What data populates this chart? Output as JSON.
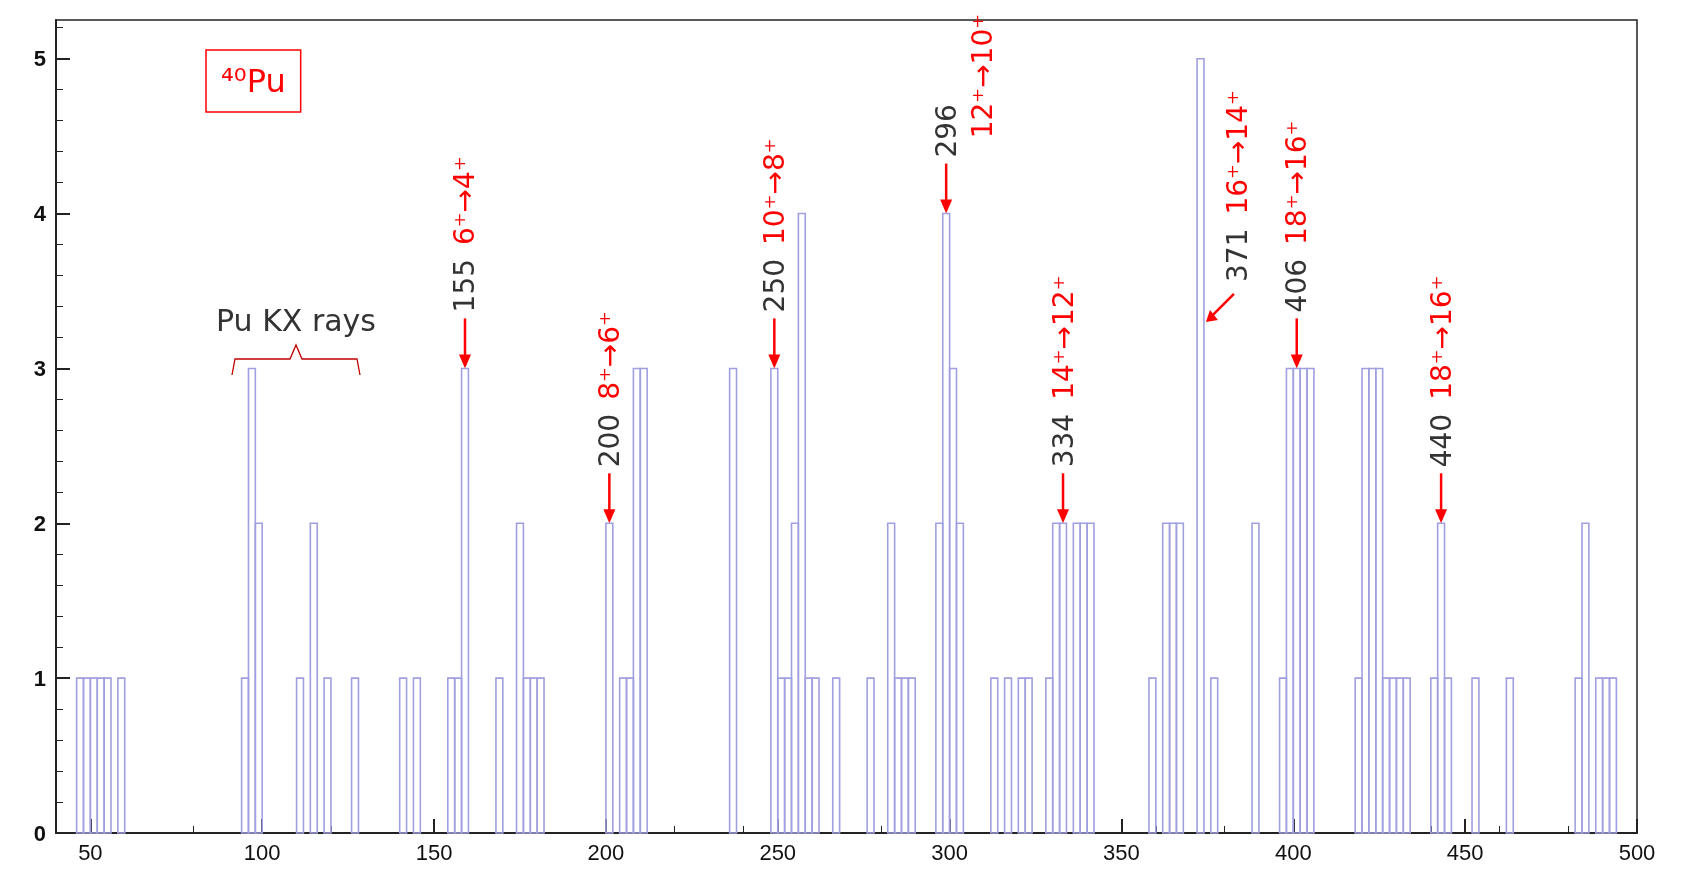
{
  "chart_data": {
    "type": "histogram",
    "bins": [
      40,
      42,
      44,
      46,
      48,
      50,
      52,
      54,
      56,
      58,
      60,
      62,
      64,
      66,
      68,
      70,
      72,
      74,
      76,
      78,
      80,
      82,
      84,
      86,
      88,
      90,
      92,
      94,
      96,
      98,
      100,
      102,
      104,
      106,
      108,
      110,
      112,
      114,
      116,
      118,
      120,
      122,
      124,
      126,
      128,
      130,
      132,
      134,
      136,
      138,
      140,
      142,
      144,
      146,
      148,
      150,
      152,
      154,
      156,
      158,
      160,
      162,
      164,
      166,
      168,
      170,
      172,
      174,
      176,
      178,
      180,
      182,
      184,
      186,
      188,
      190,
      192,
      194,
      196,
      198,
      200,
      202,
      204,
      206,
      208,
      210,
      212,
      214,
      216,
      218,
      220,
      222,
      224,
      226,
      228,
      230,
      232,
      234,
      236,
      238,
      240,
      242,
      244,
      246,
      248,
      250,
      252,
      254,
      256,
      258,
      260,
      262,
      264,
      266,
      268,
      270,
      272,
      274,
      276,
      278,
      280,
      282,
      284,
      286,
      288,
      290,
      292,
      294,
      296,
      298,
      300,
      302,
      304,
      306,
      308,
      310,
      312,
      314,
      316,
      318,
      320,
      322,
      324,
      326,
      328,
      330,
      332,
      334,
      336,
      338,
      340,
      342,
      344,
      346,
      348,
      350,
      352,
      354,
      356,
      358,
      360,
      362,
      364,
      366,
      368,
      370,
      372,
      374,
      376,
      378,
      380,
      382,
      384,
      386,
      388,
      390,
      392,
      394,
      396,
      398,
      400,
      402,
      404,
      406,
      408,
      410,
      412,
      414,
      416,
      418,
      420,
      422,
      424,
      426,
      428,
      430,
      432,
      434,
      436,
      438,
      440,
      442,
      444,
      446,
      448,
      450,
      452,
      454,
      456,
      458,
      460,
      462,
      464,
      466,
      468,
      470,
      472,
      474,
      476,
      478,
      480,
      482,
      484,
      486,
      488,
      490,
      492,
      494,
      496,
      498,
      500
    ],
    "values": [
      0,
      0,
      0,
      1,
      1,
      1,
      1,
      1,
      0,
      1,
      0,
      0,
      0,
      0,
      0,
      0,
      0,
      0,
      0,
      0,
      0,
      0,
      0,
      0,
      0,
      0,
      0,
      1,
      3,
      2,
      0,
      0,
      0,
      0,
      0,
      1,
      0,
      2,
      0,
      1,
      0,
      0,
      0,
      1,
      0,
      0,
      0,
      0,
      0,
      0,
      1,
      0,
      1,
      0,
      0,
      0,
      0,
      1,
      1,
      3,
      0,
      0,
      0,
      0,
      1,
      0,
      0,
      2,
      1,
      1,
      1,
      0,
      0,
      0,
      0,
      0,
      0,
      0,
      0,
      0,
      2,
      0,
      1,
      1,
      3,
      3,
      0,
      0,
      0,
      0,
      0,
      0,
      0,
      0,
      0,
      0,
      0,
      0,
      3,
      0,
      0,
      0,
      0,
      0,
      3,
      1,
      1,
      2,
      4,
      1,
      1,
      0,
      0,
      1,
      0,
      0,
      0,
      0,
      1,
      0,
      0,
      2,
      1,
      1,
      1,
      0,
      0,
      0,
      2,
      4,
      3,
      2,
      0,
      0,
      0,
      0,
      1,
      0,
      1,
      0,
      1,
      1,
      0,
      0,
      1,
      2,
      2,
      0,
      2,
      2,
      2,
      0,
      0,
      0,
      0,
      0,
      0,
      0,
      0,
      1,
      0,
      2,
      2,
      2,
      0,
      0,
      5,
      0,
      1,
      0,
      0,
      0,
      0,
      0,
      2,
      0,
      0,
      0,
      1,
      3,
      3,
      3,
      3,
      0,
      0,
      0,
      0,
      0,
      0,
      1,
      3,
      3,
      3,
      1,
      1,
      1,
      1,
      0,
      0,
      0,
      1,
      2,
      1,
      0,
      0,
      0,
      1,
      0,
      0,
      0,
      0,
      1,
      0,
      0,
      0,
      0,
      0,
      0,
      0,
      0,
      0,
      1,
      2,
      0,
      1,
      1,
      1,
      0,
      0,
      0
    ],
    "color": "#a0a0e0",
    "xlim": [
      40,
      500
    ],
    "xticks": [
      50,
      100,
      150,
      200,
      250,
      300,
      350,
      400,
      450,
      500
    ],
    "ylim": [
      0,
      5.25
    ],
    "yticks": [
      0,
      1,
      2,
      3,
      4,
      5
    ],
    "annotations": [
      "⁴⁰Pu",
      "Pu KX rays",
      {
        "text": "155",
        "x": 159,
        "y": 3
      },
      "6⁺→4⁺",
      {
        "text": "200",
        "x": 201,
        "y": 2
      },
      "8⁺→6⁺",
      {
        "text": "250",
        "x": 249,
        "y": 3
      },
      "10⁺→8⁺",
      {
        "text": "296",
        "x": 299,
        "y": 4
      },
      "12⁺→10⁺",
      {
        "text": "334",
        "x": 333,
        "y": 2
      },
      "14⁺→12⁺",
      {
        "text": "371",
        "x": 373,
        "y": 3.3
      },
      "16⁺→14⁺",
      {
        "text": "406",
        "x": 401,
        "y": 3
      },
      "18⁺→16⁺",
      {
        "text": "440",
        "x": 443,
        "y": 2
      },
      "18⁺→16⁺"
    ]
  }
}
